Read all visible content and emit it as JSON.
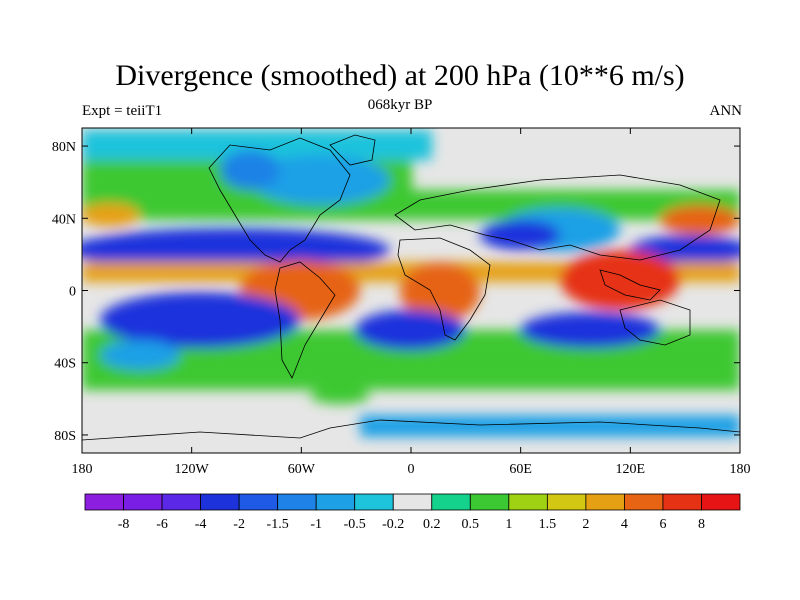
{
  "title": "Divergence (smoothed) at 200 hPa (10**6 m/s)",
  "left_string": "Expt = teiiT1",
  "center_string": "068kyr BP",
  "right_string": "ANN",
  "map": {
    "projection": "cylindrical-equidistant",
    "lon_range": [
      -180,
      180
    ],
    "lat_range": [
      -90,
      90
    ],
    "lon_ticks": [
      {
        "value": -180,
        "label": "180"
      },
      {
        "value": -120,
        "label": "120W"
      },
      {
        "value": -60,
        "label": "60W"
      },
      {
        "value": 0,
        "label": "0"
      },
      {
        "value": 60,
        "label": "60E"
      },
      {
        "value": 120,
        "label": "120E"
      },
      {
        "value": 180,
        "label": "180"
      }
    ],
    "lat_ticks": [
      {
        "value": 80,
        "label": "80N"
      },
      {
        "value": 40,
        "label": "40N"
      },
      {
        "value": 0,
        "label": "0"
      },
      {
        "value": -40,
        "label": "40S"
      },
      {
        "value": -80,
        "label": "80S"
      }
    ]
  },
  "colorbar": {
    "colors": [
      "#8c1ee0",
      "#7a1ee6",
      "#5a28e6",
      "#1e32dc",
      "#1e5ae6",
      "#1e82e6",
      "#1ea0e6",
      "#1ec3dc",
      "#e6e6e6",
      "#14d28c",
      "#3cc832",
      "#a0d214",
      "#d2c814",
      "#e6a014",
      "#e66414",
      "#e63214",
      "#e61414"
    ],
    "labels": [
      "-8",
      "-6",
      "-4",
      "-2",
      "-1.5",
      "-1",
      "-0.5",
      "-0.2",
      "0.2",
      "0.5",
      "1",
      "1.5",
      "2",
      "4",
      "6",
      "8"
    ]
  }
}
